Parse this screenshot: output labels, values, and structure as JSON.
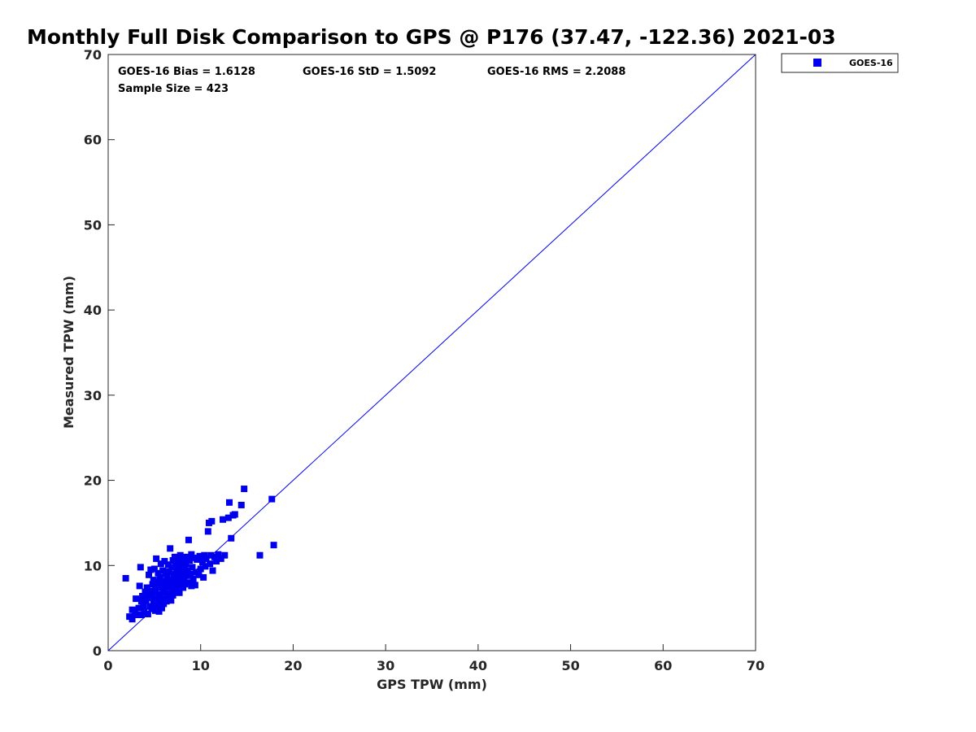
{
  "chart_data": {
    "type": "scatter",
    "title": "Monthly Full Disk Comparison to GPS @ P176 (37.47, -122.36) 2021-03",
    "xlabel": "GPS TPW (mm)",
    "ylabel": "Measured TPW (mm)",
    "xlim": [
      0,
      70
    ],
    "ylim": [
      0,
      70
    ],
    "xticks": [
      "0",
      "10",
      "20",
      "30",
      "40",
      "50",
      "60",
      "70"
    ],
    "yticks": [
      "0",
      "10",
      "20",
      "30",
      "40",
      "50",
      "60",
      "70"
    ],
    "grid": false,
    "legend_position": "top-right",
    "series_color": "#0000ee",
    "stats": {
      "bias": "GOES-16 Bias = 1.6128",
      "std": "GOES-16 StD = 1.5092",
      "rms": "GOES-16 RMS = 2.2088",
      "sample": "Sample Size = 423"
    },
    "reference_line": {
      "from": [
        0,
        0
      ],
      "to": [
        70,
        70
      ]
    },
    "series": [
      {
        "name": "GOES-16",
        "points": [
          [
            1.9,
            8.5
          ],
          [
            2.3,
            4.0
          ],
          [
            2.6,
            3.7
          ],
          [
            2.6,
            4.8
          ],
          [
            2.9,
            4.3
          ],
          [
            3.0,
            6.1
          ],
          [
            3.2,
            4.2
          ],
          [
            3.3,
            5.0
          ],
          [
            3.4,
            7.6
          ],
          [
            3.5,
            9.8
          ],
          [
            3.6,
            4.2
          ],
          [
            3.6,
            5.8
          ],
          [
            3.7,
            6.4
          ],
          [
            3.8,
            5.3
          ],
          [
            3.9,
            4.6
          ],
          [
            4.0,
            6.9
          ],
          [
            4.1,
            5.9
          ],
          [
            4.2,
            7.4
          ],
          [
            4.3,
            4.3
          ],
          [
            4.3,
            6.2
          ],
          [
            4.4,
            8.9
          ],
          [
            4.5,
            5.2
          ],
          [
            4.5,
            7.0
          ],
          [
            4.6,
            9.5
          ],
          [
            4.7,
            4.9
          ],
          [
            4.7,
            6.5
          ],
          [
            4.8,
            7.8
          ],
          [
            4.9,
            5.6
          ],
          [
            4.9,
            8.3
          ],
          [
            5.0,
            6.0
          ],
          [
            5.0,
            9.6
          ],
          [
            5.1,
            4.7
          ],
          [
            5.1,
            7.1
          ],
          [
            5.2,
            10.8
          ],
          [
            5.3,
            5.4
          ],
          [
            5.3,
            8.0
          ],
          [
            5.4,
            6.6
          ],
          [
            5.4,
            9.1
          ],
          [
            5.5,
            4.6
          ],
          [
            5.5,
            7.4
          ],
          [
            5.6,
            5.8
          ],
          [
            5.6,
            8.6
          ],
          [
            5.7,
            10.2
          ],
          [
            5.7,
            6.3
          ],
          [
            5.8,
            7.8
          ],
          [
            5.8,
            5.0
          ],
          [
            5.9,
            9.4
          ],
          [
            5.9,
            6.9
          ],
          [
            6.0,
            8.2
          ],
          [
            6.0,
            5.5
          ],
          [
            6.1,
            10.5
          ],
          [
            6.1,
            7.3
          ],
          [
            6.2,
            6.0
          ],
          [
            6.2,
            9.0
          ],
          [
            6.3,
            7.9
          ],
          [
            6.3,
            5.8
          ],
          [
            6.4,
            8.7
          ],
          [
            6.4,
            6.6
          ],
          [
            6.5,
            10.1
          ],
          [
            6.5,
            7.5
          ],
          [
            6.6,
            6.2
          ],
          [
            6.6,
            9.3
          ],
          [
            6.7,
            12.0
          ],
          [
            6.7,
            8.3
          ],
          [
            6.8,
            7.0
          ],
          [
            6.8,
            5.9
          ],
          [
            6.9,
            9.8
          ],
          [
            6.9,
            8.0
          ],
          [
            7.0,
            6.5
          ],
          [
            7.0,
            10.6
          ],
          [
            7.1,
            7.6
          ],
          [
            7.1,
            9.0
          ],
          [
            7.2,
            11.0
          ],
          [
            7.2,
            6.9
          ],
          [
            7.3,
            8.4
          ],
          [
            7.3,
            10.0
          ],
          [
            7.4,
            7.2
          ],
          [
            7.4,
            9.5
          ],
          [
            7.5,
            8.1
          ],
          [
            7.5,
            10.8
          ],
          [
            7.6,
            7.7
          ],
          [
            7.6,
            9.2
          ],
          [
            7.7,
            6.8
          ],
          [
            7.7,
            10.3
          ],
          [
            7.8,
            8.7
          ],
          [
            7.8,
            11.2
          ],
          [
            7.9,
            7.9
          ],
          [
            7.9,
            9.7
          ],
          [
            8.0,
            8.5
          ],
          [
            8.0,
            10.5
          ],
          [
            8.1,
            7.4
          ],
          [
            8.1,
            9.1
          ],
          [
            8.2,
            10.9
          ],
          [
            8.2,
            8.2
          ],
          [
            8.3,
            9.6
          ],
          [
            8.3,
            7.8
          ],
          [
            8.4,
            10.2
          ],
          [
            8.5,
            8.8
          ],
          [
            8.5,
            11.0
          ],
          [
            8.6,
            9.4
          ],
          [
            8.7,
            13.0
          ],
          [
            8.7,
            8.0
          ],
          [
            8.8,
            10.6
          ],
          [
            8.9,
            9.0
          ],
          [
            9.0,
            11.3
          ],
          [
            9.0,
            7.6
          ],
          [
            9.1,
            9.8
          ],
          [
            9.2,
            8.4
          ],
          [
            9.3,
            10.9
          ],
          [
            9.4,
            7.7
          ],
          [
            9.5,
            9.2
          ],
          [
            9.6,
            10.7
          ],
          [
            9.8,
            8.9
          ],
          [
            9.9,
            11.1
          ],
          [
            10.0,
            9.6
          ],
          [
            10.2,
            10.4
          ],
          [
            10.3,
            8.6
          ],
          [
            10.4,
            11.2
          ],
          [
            10.5,
            9.9
          ],
          [
            10.6,
            10.8
          ],
          [
            10.8,
            14.0
          ],
          [
            10.9,
            15.0
          ],
          [
            11.0,
            10.2
          ],
          [
            11.1,
            11.2
          ],
          [
            11.2,
            15.2
          ],
          [
            11.3,
            9.4
          ],
          [
            11.5,
            11.0
          ],
          [
            11.7,
            10.5
          ],
          [
            11.9,
            11.3
          ],
          [
            12.2,
            10.8
          ],
          [
            12.4,
            15.4
          ],
          [
            12.6,
            11.2
          ],
          [
            13.0,
            15.6
          ],
          [
            13.1,
            17.4
          ],
          [
            13.3,
            13.2
          ],
          [
            13.5,
            15.9
          ],
          [
            13.7,
            16.0
          ],
          [
            14.4,
            17.1
          ],
          [
            14.7,
            19.0
          ],
          [
            16.4,
            11.2
          ],
          [
            17.7,
            17.8
          ],
          [
            17.9,
            12.4
          ]
        ]
      }
    ]
  }
}
